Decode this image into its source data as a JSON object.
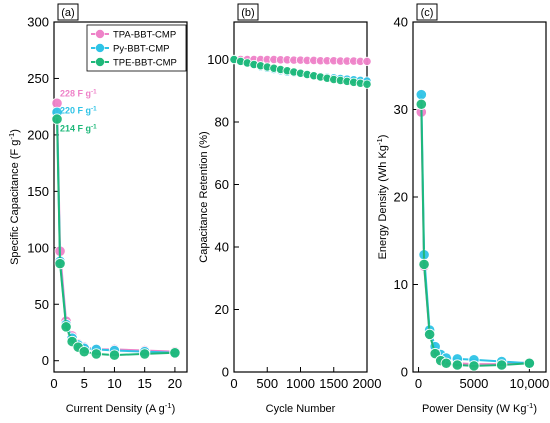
{
  "chart_data": [
    {
      "type": "line",
      "panel_label": "(a)",
      "xlabel": "Current Density (A g",
      "xlabel_sup": "-1",
      "xlabel_end": ")",
      "ylabel": "Specific Capacitance (F g",
      "ylabel_sup": "-1",
      "ylabel_end": ")",
      "xlim": [
        0,
        22
      ],
      "ylim": [
        -10,
        300
      ],
      "xticks": [
        0,
        5,
        10,
        15,
        20
      ],
      "yticks": [
        0,
        50,
        100,
        150,
        200,
        250,
        300
      ],
      "legend": "top-right",
      "grid": false,
      "series": [
        {
          "name": "TPA-BBT-CMP",
          "color": "#ee82c8",
          "x": [
            0.5,
            1,
            2,
            3,
            4,
            5,
            7,
            10,
            15,
            20
          ],
          "y": [
            228,
            97,
            35,
            22,
            15,
            12,
            10,
            10,
            9,
            8
          ]
        },
        {
          "name": "Py-BBT-CMP",
          "color": "#2ec3e6",
          "x": [
            0.5,
            1,
            2,
            3,
            4,
            5,
            7,
            10,
            15,
            20
          ],
          "y": [
            220,
            88,
            32,
            20,
            14,
            11,
            10,
            9,
            8,
            7
          ]
        },
        {
          "name": "TPE-BBT-CMP",
          "color": "#1fb87a",
          "x": [
            0.5,
            1,
            2,
            3,
            4,
            5,
            7,
            10,
            15,
            20
          ],
          "y": [
            214,
            86,
            30,
            17,
            12,
            8,
            6,
            5,
            6,
            7
          ]
        }
      ],
      "annotations": [
        {
          "text": "228 F g",
          "sup": "-1",
          "color": "#ee82c8",
          "x": 1.0,
          "y": 234
        },
        {
          "text": "220 F g",
          "sup": "-1",
          "color": "#2ec3e6",
          "x": 1.0,
          "y": 219
        },
        {
          "text": "214 F g",
          "sup": "-1",
          "color": "#1fb87a",
          "x": 1.0,
          "y": 203
        }
      ]
    },
    {
      "type": "line",
      "panel_label": "(b)",
      "xlabel": "Cycle Number",
      "ylabel": "Capacitance Retention (%)",
      "xlim": [
        0,
        2000
      ],
      "ylim": [
        0,
        112
      ],
      "xticks": [
        0,
        500,
        1000,
        1500,
        2000
      ],
      "yticks": [
        0,
        20,
        40,
        60,
        80,
        100
      ],
      "grid": false,
      "series": [
        {
          "name": "TPA-BBT-CMP",
          "color": "#ee82c8",
          "x": [
            0,
            100,
            200,
            300,
            400,
            500,
            600,
            700,
            800,
            900,
            1000,
            1100,
            1200,
            1300,
            1400,
            1500,
            1600,
            1700,
            1800,
            1900,
            2000
          ],
          "y": [
            100,
            100,
            100,
            100,
            100,
            100,
            100,
            99.9,
            99.9,
            99.8,
            99.8,
            99.7,
            99.7,
            99.6,
            99.6,
            99.6,
            99.5,
            99.5,
            99.5,
            99.4,
            99.4
          ]
        },
        {
          "name": "Py-BBT-CMP",
          "color": "#2ec3e6",
          "x": [
            0,
            100,
            200,
            300,
            400,
            500,
            600,
            700,
            800,
            900,
            1000,
            1100,
            1200,
            1300,
            1400,
            1500,
            1600,
            1700,
            1800,
            1900,
            2000
          ],
          "y": [
            100,
            99.3,
            98.7,
            98.2,
            97.7,
            97.2,
            96.8,
            96.4,
            96.0,
            95.7,
            95.4,
            95.1,
            94.8,
            94.6,
            94.3,
            94.1,
            93.9,
            93.7,
            93.5,
            93.3,
            93.1
          ]
        },
        {
          "name": "TPE-BBT-CMP",
          "color": "#1fb87a",
          "x": [
            0,
            100,
            200,
            300,
            400,
            500,
            600,
            700,
            800,
            900,
            1000,
            1100,
            1200,
            1300,
            1400,
            1500,
            1600,
            1700,
            1800,
            1900,
            2000
          ],
          "y": [
            100,
            99.4,
            98.9,
            98.4,
            98.0,
            97.6,
            97.2,
            96.8,
            96.4,
            96.0,
            95.6,
            95.2,
            94.8,
            94.4,
            94.0,
            93.6,
            93.3,
            93.0,
            92.7,
            92.4,
            92.1
          ]
        }
      ]
    },
    {
      "type": "line",
      "panel_label": "(c)",
      "xlabel": "Power Density (W Kg",
      "xlabel_sup": "-1",
      "xlabel_end": ")",
      "ylabel": "Energy Density (Wh Kg",
      "ylabel_sup": "-1",
      "ylabel_end": ")",
      "xlim": [
        -500,
        11500
      ],
      "ylim": [
        0,
        40
      ],
      "xticks": [
        0,
        5000,
        10000
      ],
      "xticklabels": [
        "0",
        "5000",
        "10,000"
      ],
      "yticks": [
        0,
        10,
        20,
        30,
        40
      ],
      "grid": false,
      "series": [
        {
          "name": "TPA-BBT-CMP",
          "color": "#ee82c8",
          "x": [
            250,
            500,
            1000,
            1500,
            2000,
            2500,
            3500,
            5000,
            7500,
            10000
          ],
          "y": [
            29.7,
            12.1,
            4.2,
            2.3,
            1.6,
            1.2,
            1.0,
            0.9,
            0.9,
            1.1
          ]
        },
        {
          "name": "Py-BBT-CMP",
          "color": "#2ec3e6",
          "x": [
            250,
            500,
            1000,
            1500,
            2000,
            2500,
            3500,
            5000,
            7500,
            10000
          ],
          "y": [
            31.7,
            13.4,
            4.8,
            2.9,
            2.0,
            1.6,
            1.5,
            1.4,
            1.2,
            1.0
          ]
        },
        {
          "name": "TPE-BBT-CMP",
          "color": "#1fb87a",
          "x": [
            250,
            500,
            1000,
            1500,
            2000,
            2500,
            3500,
            5000,
            7500,
            10000
          ],
          "y": [
            30.6,
            12.3,
            4.3,
            2.1,
            1.3,
            1.0,
            0.8,
            0.7,
            0.8,
            1.0
          ]
        }
      ]
    }
  ]
}
